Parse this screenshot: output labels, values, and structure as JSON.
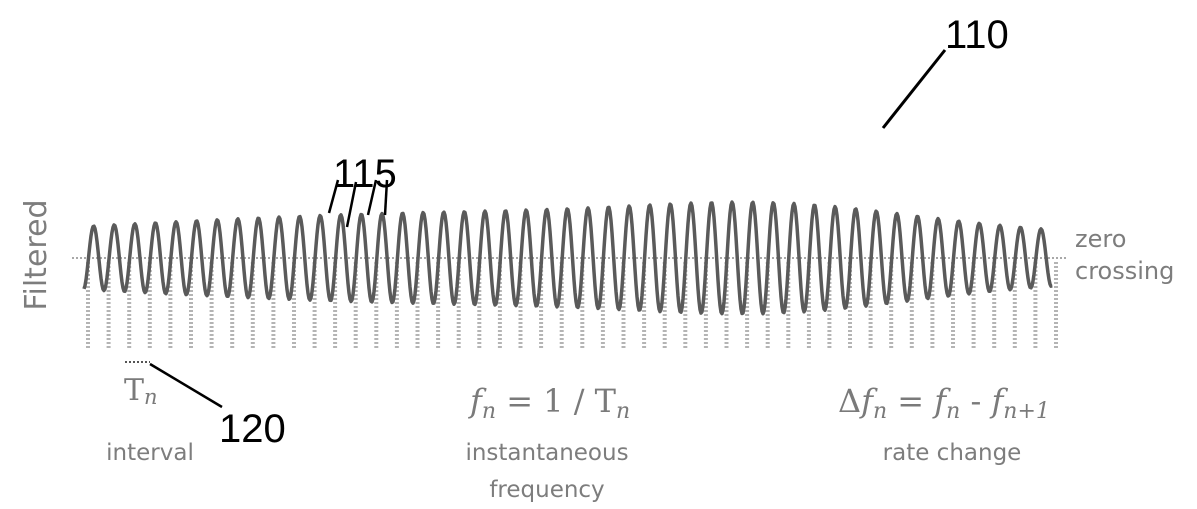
{
  "figure": {
    "y_axis_label": "Filtered",
    "zero_label_line1": "zero",
    "zero_label_line2": "crossing",
    "ref_waveform": "110",
    "ref_peaks": "115",
    "ref_interval": "120",
    "interval": {
      "symbol": "T",
      "subscript": "n",
      "caption": "interval"
    },
    "inst_frequency": {
      "f": "f",
      "sub": "n",
      "rhs": " = 1 / T",
      "rhs_sub": "n",
      "caption_line1": "instantaneous",
      "caption_line2": "frequency"
    },
    "rate_change": {
      "delta": "Δ",
      "f1": "f",
      "sub1": "n",
      "eq": " = ",
      "f2": "f",
      "sub2": "n",
      "minus": " - ",
      "f3": "f",
      "sub3": "n+1",
      "caption": "rate change"
    },
    "colors": {
      "waveform": "#5a5a5a",
      "baseline": "#a8a8a8",
      "crossings": "#b4b4b4",
      "text_soft": "#7d7d7d"
    }
  }
}
